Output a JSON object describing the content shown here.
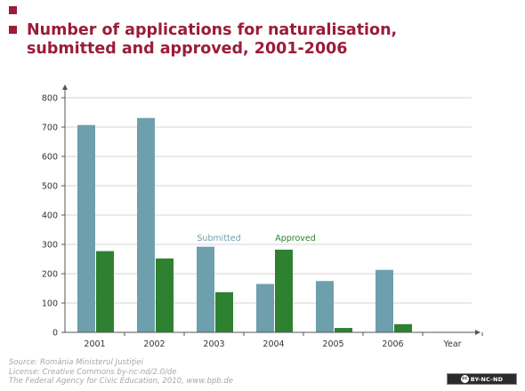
{
  "title": "Number of applications for naturalisation, submitted and approved, 2001-2006",
  "footer": {
    "source": "Source: România Ministerul Justiţiei",
    "license": "License: Creative Commons by-nc-nd/2.0/de",
    "publisher": "The Federal Agency for Civic Education, 2010, www.bpb.de"
  },
  "badge": {
    "cc": "cc",
    "text": "BY-NC-ND"
  },
  "chart_data": {
    "type": "bar",
    "categories": [
      "2001",
      "2002",
      "2003",
      "2004",
      "2005",
      "2006"
    ],
    "series": [
      {
        "name": "Submitted",
        "color": "#6e9fad",
        "values": [
          707,
          731,
          292,
          165,
          175,
          213
        ]
      },
      {
        "name": "Approved",
        "color": "#2e8130",
        "values": [
          277,
          252,
          137,
          282,
          15,
          28
        ]
      }
    ],
    "xlabel": "Year",
    "ylabel": "",
    "ylim": [
      0,
      800
    ],
    "yticks": [
      0,
      100,
      200,
      300,
      400,
      500,
      600,
      700,
      800
    ],
    "grid": true,
    "legend": "in-plot"
  }
}
